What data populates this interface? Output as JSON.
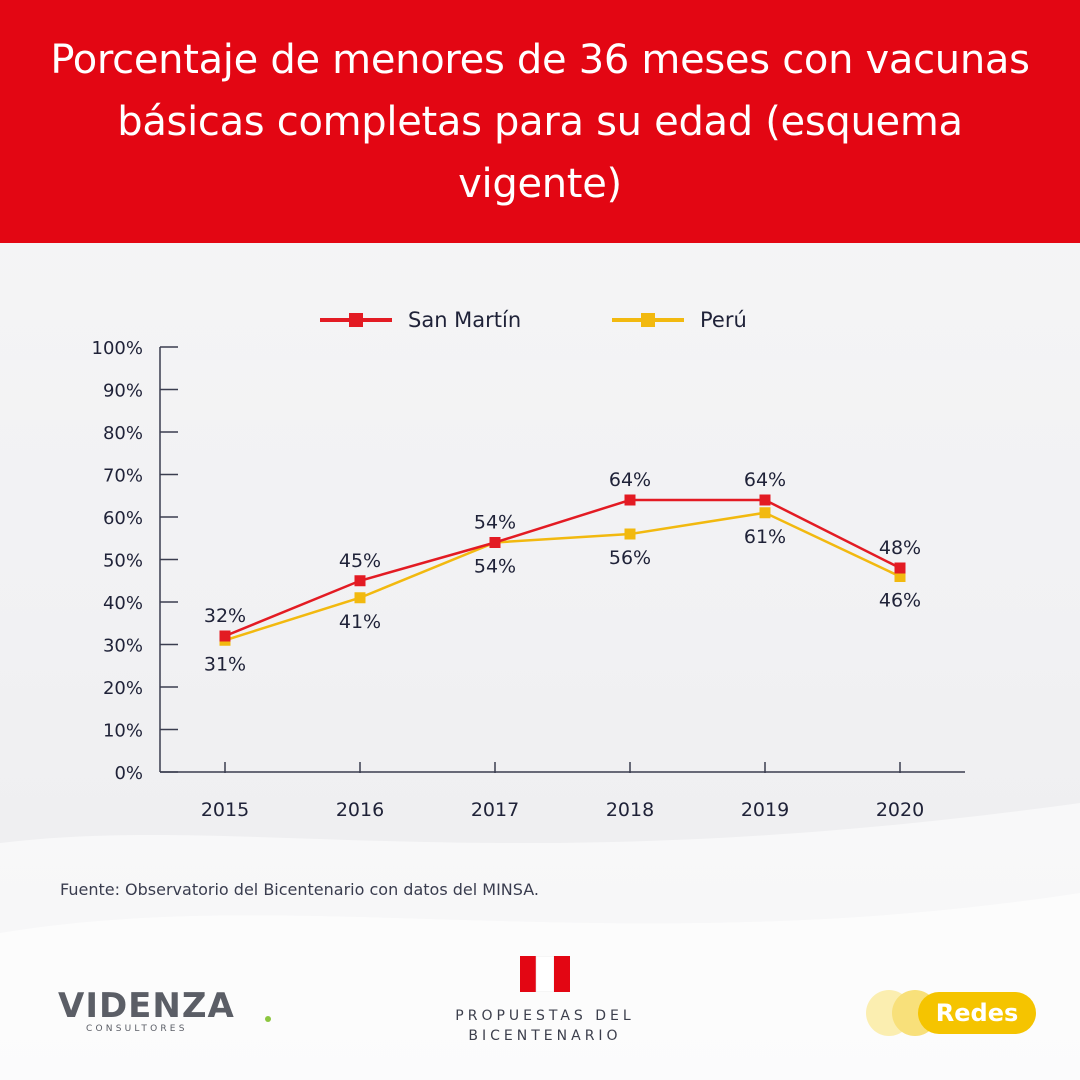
{
  "header": {
    "title": "Porcentaje de menores de 36 meses con vacunas básicas completas para su edad (esquema vigente)"
  },
  "legend": {
    "items": [
      {
        "label": "San Martín",
        "color": "#e31b23"
      },
      {
        "label": "Perú",
        "color": "#f2b90f"
      }
    ]
  },
  "chart_data": {
    "type": "line",
    "title": "Porcentaje de menores de 36 meses con vacunas básicas completas para su edad (esquema vigente)",
    "categories": [
      "2015",
      "2016",
      "2017",
      "2018",
      "2019",
      "2020"
    ],
    "series": [
      {
        "name": "San Martín",
        "values": [
          32,
          45,
          54,
          64,
          64,
          48
        ],
        "color": "#e31b23",
        "labels": [
          "32%",
          "45%",
          "54%",
          "64%",
          "64%",
          "48%"
        ]
      },
      {
        "name": "Perú",
        "values": [
          31,
          41,
          54,
          56,
          61,
          46
        ],
        "color": "#f2b90f",
        "labels": [
          "31%",
          "41%",
          "54%",
          "56%",
          "61%",
          "46%"
        ]
      }
    ],
    "ylim": [
      0,
      100
    ],
    "yticks": [
      "0%",
      "10%",
      "20%",
      "30%",
      "40%",
      "50%",
      "60%",
      "70%",
      "80%",
      "90%",
      "100%"
    ],
    "grid": false,
    "legend_position": "top-center",
    "xlabel": "",
    "ylabel": ""
  },
  "footer": {
    "source": "Fuente: Observatorio del Bicentenario con datos del MINSA.",
    "logo_videnza": "VIDENZA",
    "logo_videnza_sub": "CONSULTORES",
    "logo_bicentenario_line1": "PROPUESTAS DEL",
    "logo_bicentenario_line2": "BICENTENARIO",
    "redes_label": "Redes"
  }
}
